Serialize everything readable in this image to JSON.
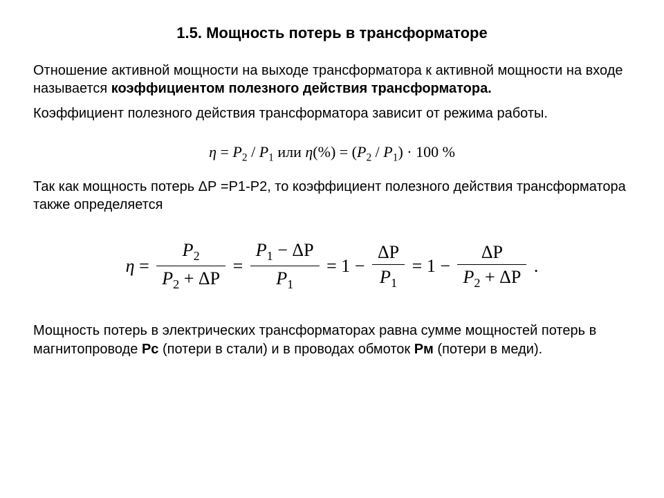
{
  "title": "1.5. Мощность потерь в трансформаторе",
  "para1_part1": "Отношение активной мощности на выходе трансформатора к активной мощности на входе называется ",
  "para1_bold": "коэффициентом полезного действия трансформатора.",
  "para2": "Коэффициент полезного действия трансформатора зависит от режима работы.",
  "formula1": {
    "eta": "η",
    "eq": " = ",
    "p2": "P",
    "sub2": "2",
    "slash": " / ",
    "p1": "P",
    "sub1": "1",
    "ili": " или ",
    "etapct": "η",
    "pct_open": "(%) = (",
    "p2b": "P",
    "sub2b": "2",
    "slashb": " / ",
    "p1b": "P",
    "sub1b": "1",
    "pct_close": ") · 100 %"
  },
  "para3": "Так как мощность потерь ΔР =Р1-Р2, то коэффициент полезного действия трансформатора также определяется",
  "formula2": {
    "eta": "η",
    "eq": "=",
    "p2": "P",
    "s2": "2",
    "p2b": "P",
    "s2b": "2",
    "plus": " + ",
    "dp": "ΔP",
    "p1": "P",
    "s1": "1",
    "minus": " − ",
    "dpb": "ΔP",
    "p1b": "P",
    "s1b": "1",
    "one": "1",
    "dpc": "ΔP",
    "p1c": "P",
    "s1c": "1",
    "dpd": "ΔP",
    "p2c": "P",
    "s2c": "2",
    "dpe": "ΔP",
    "dot": " ."
  },
  "para4_p1": "Мощность потерь в электрических трансформаторах равна сумме мощностей потерь в магнитопроводе ",
  "para4_b1": "Рс",
  "para4_p2": " (потери в стали) и в проводах обмоток ",
  "para4_b2": "Рм",
  "para4_p3": " (потери в меди)."
}
